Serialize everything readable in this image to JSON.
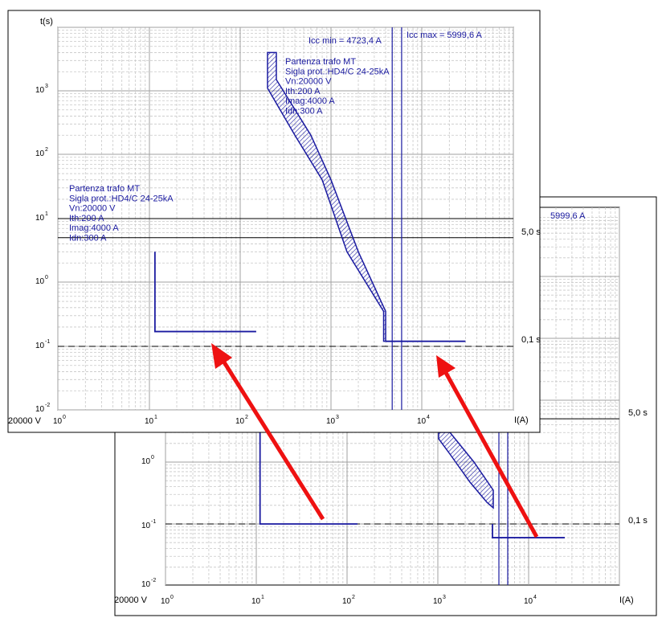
{
  "chart_data": [
    {
      "type": "line",
      "title": "",
      "xlabel": "I(A)",
      "ylabel": "t(s)",
      "x_scale": "log",
      "y_scale": "log",
      "xlim": [
        1,
        100000
      ],
      "ylim": [
        0.01,
        10000
      ],
      "grid": true,
      "voltage_label": "20000 V",
      "x_ticks": [
        {
          "base": "10",
          "exp": "0"
        },
        {
          "base": "10",
          "exp": "1"
        },
        {
          "base": "10",
          "exp": "2"
        },
        {
          "base": "10",
          "exp": "3"
        },
        {
          "base": "10",
          "exp": "4"
        }
      ],
      "y_ticks": [
        {
          "base": "10",
          "exp": "3"
        },
        {
          "base": "10",
          "exp": "2"
        },
        {
          "base": "10",
          "exp": "1"
        },
        {
          "base": "10",
          "exp": "0"
        },
        {
          "base": "10",
          "exp": "-1"
        },
        {
          "base": "10",
          "exp": "-2"
        }
      ],
      "annotations": {
        "icc_min": "Icc min = 4723,4 A",
        "icc_max": "Icc max = 5999,6 A",
        "icc_min_value": 4723.4,
        "icc_max_value": 5999.6,
        "reference_line": 0.1
      },
      "labels": [
        {
          "lines": [
            "Partenza trafo MT",
            "Sigla prot.:HD4/C 24-25kA",
            "Vn:20000 V",
            "Ith:200 A",
            "Imag:4000 A",
            "Idn:300 A"
          ]
        },
        {
          "lines": [
            "Partenza trafo MT",
            "Sigla prot.:HD4/C 24-25kA",
            "Vn:20000 V",
            "Ith:200 A",
            "Imag:4000 A",
            "Idn:300 A"
          ]
        }
      ],
      "series": [
        {
          "values_xy": [
            [
              11.5,
              3
            ],
            [
              11.5,
              0.17
            ],
            [
              150,
              0.17
            ]
          ]
        },
        {
          "band_upper": [
            [
              250,
              4000
            ],
            [
              250,
              1500
            ],
            [
              600,
              200
            ],
            [
              1000,
              40
            ],
            [
              2000,
              3
            ],
            [
              4000,
              0.35
            ],
            [
              4000,
              0.12
            ]
          ],
          "band_lower": [
            [
              200,
              4000
            ],
            [
              200,
              1100
            ],
            [
              400,
              200
            ],
            [
              800,
              40
            ],
            [
              1500,
              3
            ],
            [
              3800,
              0.35
            ],
            [
              3800,
              0.12
            ]
          ],
          "tail": [
            [
              4000,
              0.12
            ],
            [
              30000,
              0.12
            ]
          ]
        }
      ]
    },
    {
      "type": "line",
      "title": "",
      "xlabel": "I(A)",
      "ylabel": "",
      "x_scale": "log",
      "y_scale": "log",
      "grid": true,
      "voltage_label": "20000 V",
      "x_ticks": [
        {
          "base": "10",
          "exp": "0"
        },
        {
          "base": "10",
          "exp": "1"
        },
        {
          "base": "10",
          "exp": "2"
        },
        {
          "base": "10",
          "exp": "3"
        },
        {
          "base": "10",
          "exp": "4"
        }
      ],
      "y_ticks": [
        {
          "base": "10",
          "exp": "0"
        },
        {
          "base": "10",
          "exp": "-1"
        },
        {
          "base": "10",
          "exp": "-2"
        }
      ],
      "annotations": {
        "icc_max_fragment": "5999,6 A",
        "right_label_5s": "5,0 s",
        "right_label_01s": "0,1 s",
        "reference_line": 0.1
      },
      "series": [
        {
          "values_xy": [
            [
              11,
              10
            ],
            [
              11,
              0.1
            ],
            [
              130,
              0.1
            ]
          ]
        },
        {
          "values_xy": [
            [
              4000,
              0.1
            ],
            [
              4000,
              0.06
            ],
            [
              25000,
              0.06
            ]
          ]
        }
      ]
    }
  ],
  "right_labels_front": {
    "top": "5,0 s",
    "bottom": "0,1 s"
  }
}
